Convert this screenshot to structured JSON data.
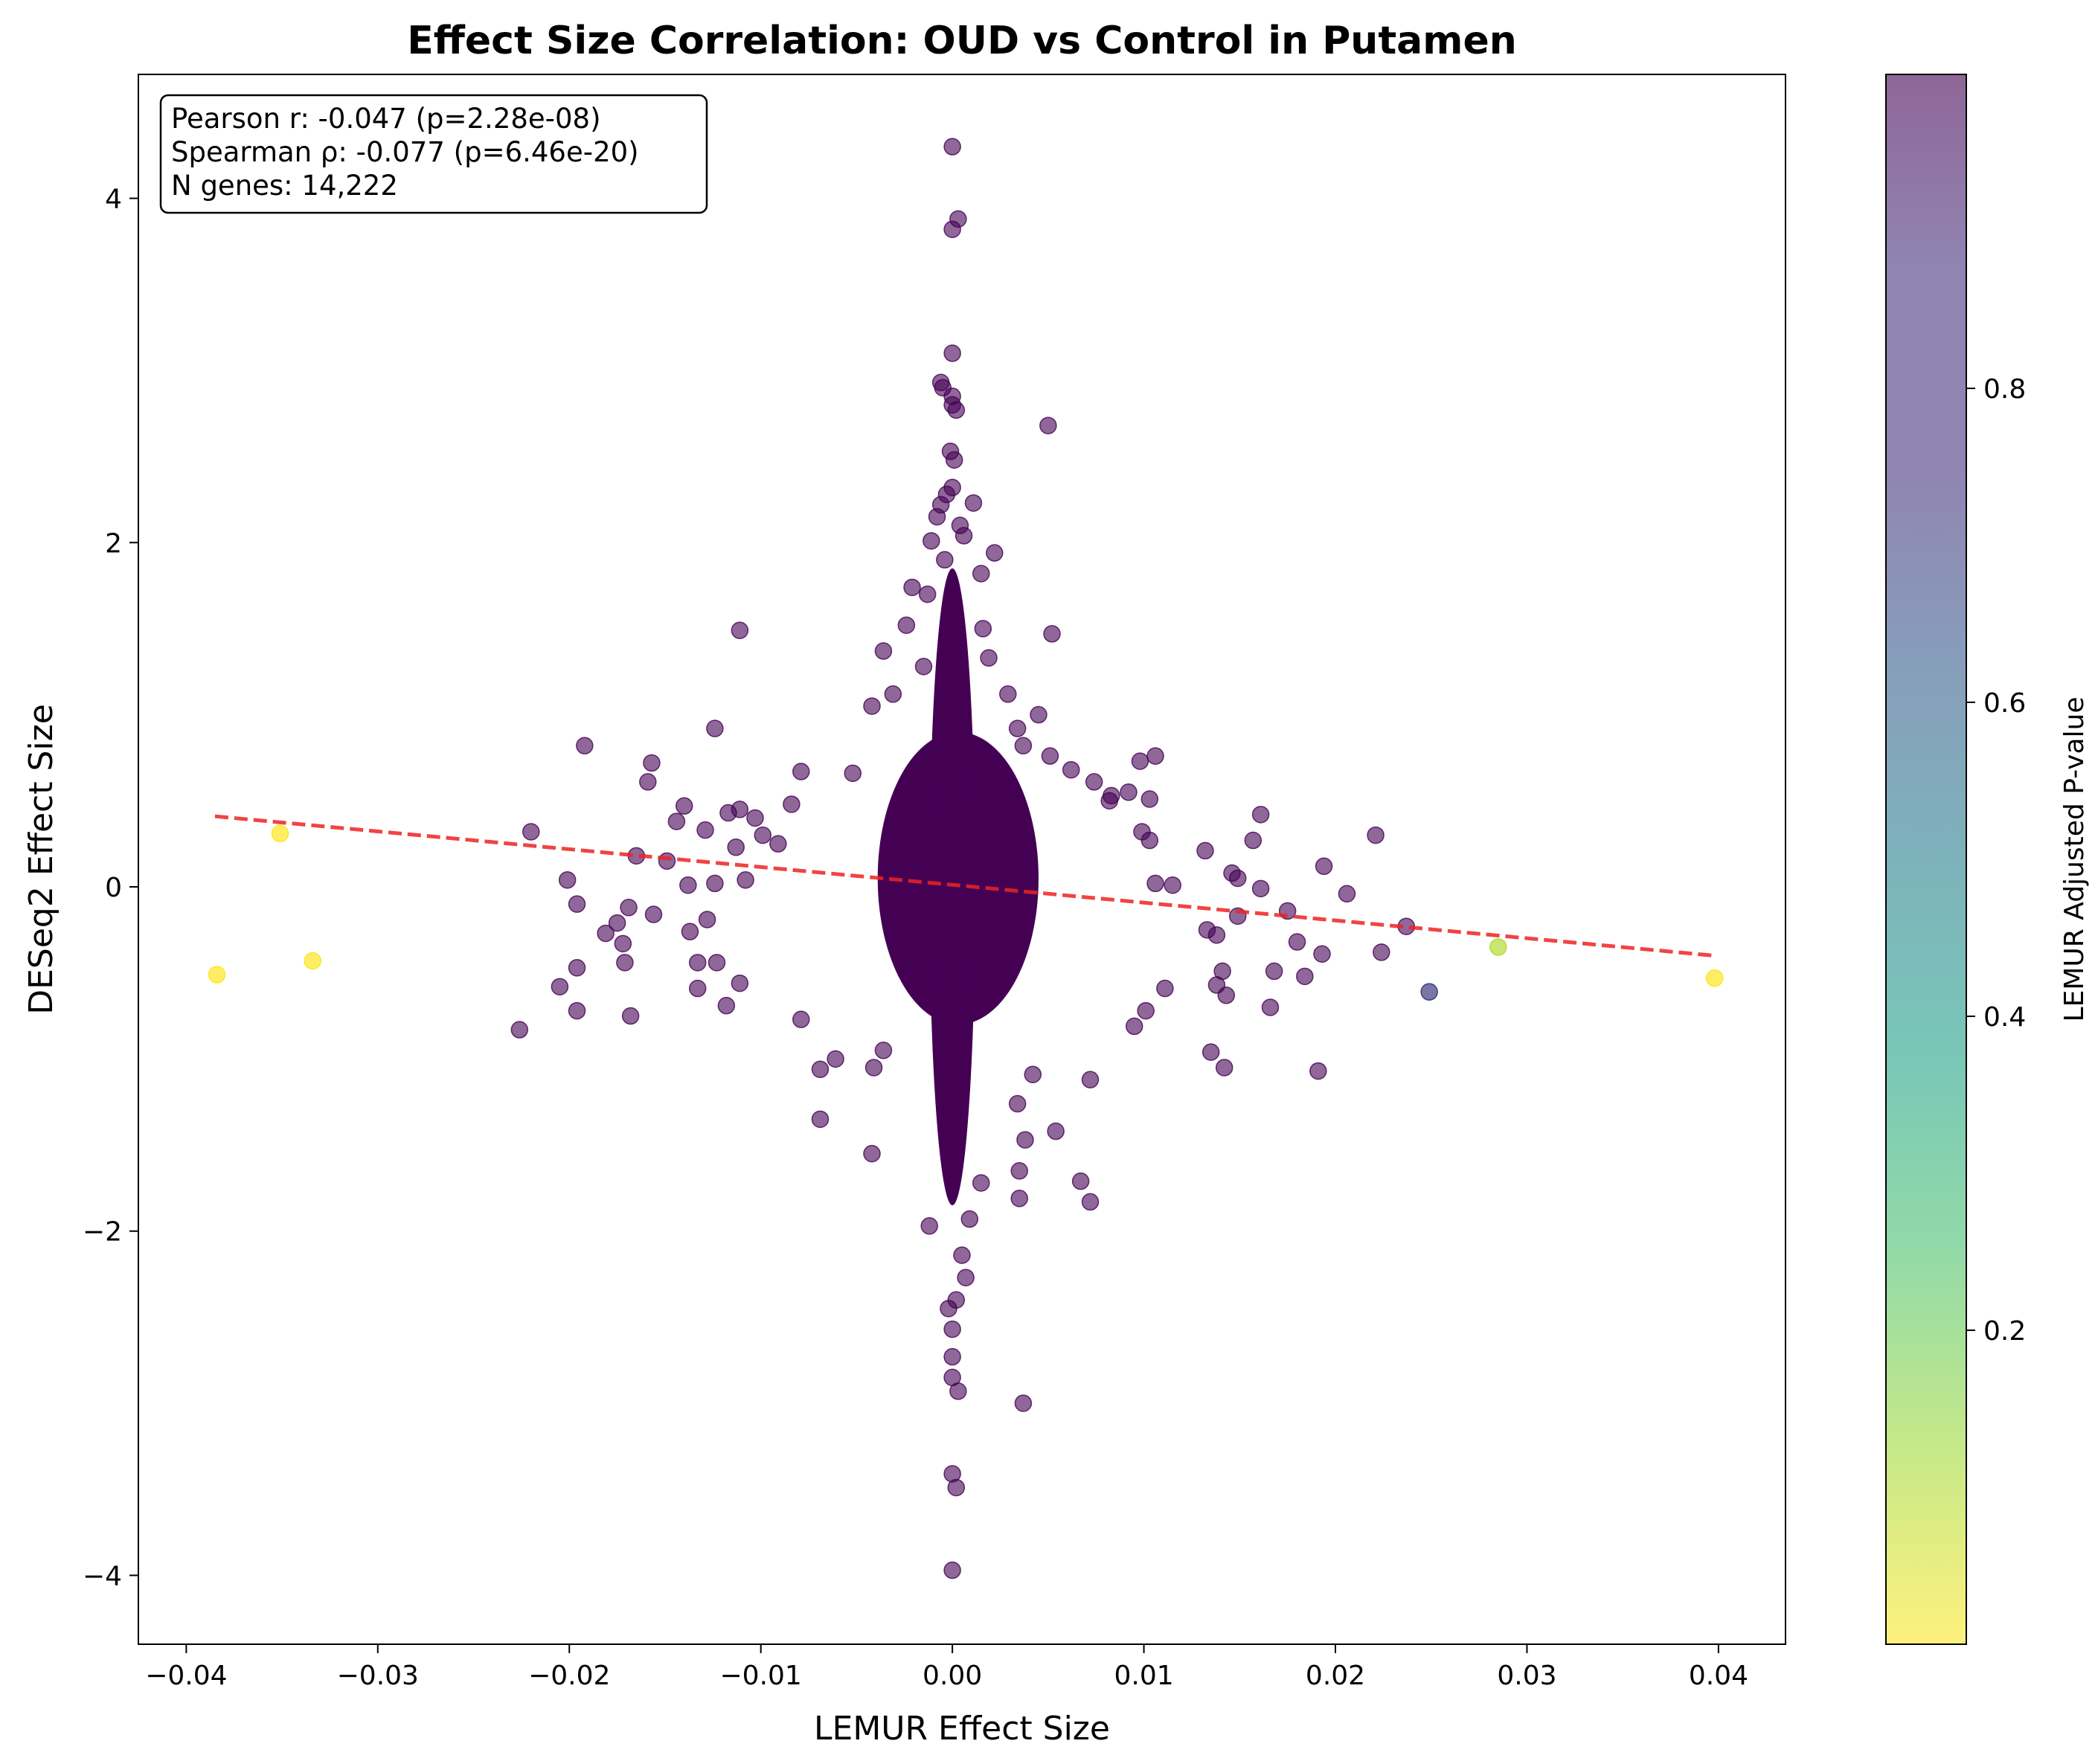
{
  "chart_data": {
    "type": "scatter",
    "title": "Effect Size Correlation: OUD vs Control in Putamen",
    "xlabel": "LEMUR Effect Size",
    "ylabel": "DESeq2 Effect Size",
    "xlim": [
      -0.0425,
      0.0435
    ],
    "ylim": [
      -4.4,
      4.72
    ],
    "x_ticks": [
      -0.04,
      -0.03,
      -0.02,
      -0.01,
      0.0,
      0.01,
      0.02,
      0.03,
      0.04
    ],
    "x_tick_labels": [
      "−0.04",
      "−0.03",
      "−0.02",
      "−0.01",
      "0.00",
      "0.01",
      "0.02",
      "0.03",
      "0.04"
    ],
    "y_ticks": [
      -4,
      -2,
      0,
      2,
      4
    ],
    "y_tick_labels": [
      "−4",
      "−2",
      "0",
      "2",
      "4"
    ],
    "grid": false,
    "stats": [
      "Pearson r: -0.047 (p=2.28e-08)",
      "Spearman ρ: -0.077 (p=6.46e-20)",
      "N genes: 14,222"
    ],
    "trend_line": {
      "x": [
        -0.0385,
        0.0398
      ],
      "y": [
        0.41,
        -0.4
      ],
      "color": "#ee2222",
      "style": "dashed"
    },
    "colorbar": {
      "label": "LEMUR Adjusted P-value",
      "colormap": "viridis_r",
      "range": [
        0.0,
        1.0
      ],
      "ticks": [
        0.2,
        0.4,
        0.6,
        0.8
      ],
      "tick_labels": [
        "0.2",
        "0.4",
        "0.6",
        "0.8"
      ]
    },
    "point_color_default": "#440154",
    "point_alpha": 0.6,
    "highlighted_points": [
      {
        "x": -0.0384,
        "y": -0.51,
        "p": 0.0
      },
      {
        "x": -0.0351,
        "y": 0.31,
        "p": 0.0
      },
      {
        "x": -0.0334,
        "y": -0.43,
        "p": 0.0
      },
      {
        "x": 0.0249,
        "y": -0.61,
        "p": 0.72
      },
      {
        "x": 0.0285,
        "y": -0.35,
        "p": 0.1
      },
      {
        "x": 0.0398,
        "y": -0.53,
        "p": 0.0
      }
    ],
    "points": [
      [
        0.0,
        4.3
      ],
      [
        0.0003,
        3.88
      ],
      [
        0.0,
        3.82
      ],
      [
        0.0,
        3.1
      ],
      [
        -0.0006,
        2.93
      ],
      [
        -0.0005,
        2.9
      ],
      [
        0.0,
        2.85
      ],
      [
        0.0,
        2.8
      ],
      [
        0.0002,
        2.77
      ],
      [
        0.005,
        2.68
      ],
      [
        -0.0001,
        2.53
      ],
      [
        0.0001,
        2.48
      ],
      [
        0.0,
        2.32
      ],
      [
        -0.0003,
        2.28
      ],
      [
        -0.0006,
        2.22
      ],
      [
        0.0011,
        2.23
      ],
      [
        -0.0008,
        2.15
      ],
      [
        0.0004,
        2.1
      ],
      [
        0.0006,
        2.04
      ],
      [
        -0.0011,
        2.01
      ],
      [
        0.0022,
        1.94
      ],
      [
        -0.0004,
        1.9
      ],
      [
        0.0015,
        1.82
      ],
      [
        -0.0021,
        1.74
      ],
      [
        -0.0013,
        1.7
      ],
      [
        -0.0111,
        1.49
      ],
      [
        0.0016,
        1.5
      ],
      [
        0.0052,
        1.47
      ],
      [
        -0.0024,
        1.52
      ],
      [
        0.0019,
        1.33
      ],
      [
        -0.0036,
        1.37
      ],
      [
        -0.0015,
        1.28
      ],
      [
        0.0029,
        1.12
      ],
      [
        -0.0031,
        1.12
      ],
      [
        0.0045,
        1.0
      ],
      [
        -0.0042,
        1.05
      ],
      [
        -0.0124,
        0.92
      ],
      [
        0.0034,
        0.92
      ],
      [
        -0.0192,
        0.82
      ],
      [
        0.0037,
        0.82
      ],
      [
        0.0051,
        0.76
      ],
      [
        0.0106,
        0.76
      ],
      [
        -0.0157,
        0.72
      ],
      [
        0.0098,
        0.73
      ],
      [
        -0.0159,
        0.61
      ],
      [
        0.0062,
        0.68
      ],
      [
        -0.0079,
        0.67
      ],
      [
        0.0074,
        0.61
      ],
      [
        -0.0052,
        0.66
      ],
      [
        -0.014,
        0.47
      ],
      [
        -0.0111,
        0.45
      ],
      [
        -0.0117,
        0.43
      ],
      [
        -0.0103,
        0.4
      ],
      [
        0.0083,
        0.53
      ],
      [
        0.0092,
        0.55
      ],
      [
        0.0082,
        0.5
      ],
      [
        0.0103,
        0.51
      ],
      [
        -0.0084,
        0.48
      ],
      [
        -0.0144,
        0.38
      ],
      [
        -0.022,
        0.32
      ],
      [
        -0.0129,
        0.33
      ],
      [
        -0.0099,
        0.3
      ],
      [
        0.0099,
        0.32
      ],
      [
        0.0103,
        0.27
      ],
      [
        0.0161,
        0.42
      ],
      [
        0.0221,
        0.3
      ],
      [
        -0.0165,
        0.18
      ],
      [
        -0.0149,
        0.15
      ],
      [
        -0.0113,
        0.23
      ],
      [
        -0.0091,
        0.25
      ],
      [
        0.0132,
        0.21
      ],
      [
        0.0157,
        0.27
      ],
      [
        0.0194,
        0.12
      ],
      [
        -0.0201,
        0.04
      ],
      [
        -0.0138,
        0.01
      ],
      [
        -0.0124,
        0.02
      ],
      [
        -0.0108,
        0.04
      ],
      [
        0.0146,
        0.08
      ],
      [
        0.0149,
        0.05
      ],
      [
        0.0115,
        0.01
      ],
      [
        0.0106,
        0.02
      ],
      [
        0.0161,
        -0.01
      ],
      [
        0.0206,
        -0.04
      ],
      [
        -0.0196,
        -0.1
      ],
      [
        -0.0169,
        -0.12
      ],
      [
        -0.0156,
        -0.16
      ],
      [
        -0.0181,
        -0.27
      ],
      [
        -0.0175,
        -0.21
      ],
      [
        -0.0128,
        -0.19
      ],
      [
        0.0133,
        -0.25
      ],
      [
        0.0138,
        -0.28
      ],
      [
        0.0149,
        -0.17
      ],
      [
        0.0175,
        -0.14
      ],
      [
        0.0237,
        -0.23
      ],
      [
        0.018,
        -0.32
      ],
      [
        -0.0172,
        -0.33
      ],
      [
        -0.0137,
        -0.26
      ],
      [
        -0.0133,
        -0.44
      ],
      [
        -0.0123,
        -0.44
      ],
      [
        -0.0171,
        -0.44
      ],
      [
        -0.0196,
        -0.47
      ],
      [
        0.0168,
        -0.49
      ],
      [
        0.0141,
        -0.49
      ],
      [
        0.0193,
        -0.39
      ],
      [
        0.0224,
        -0.38
      ],
      [
        -0.0205,
        -0.58
      ],
      [
        -0.0133,
        -0.59
      ],
      [
        -0.0111,
        -0.56
      ],
      [
        0.0138,
        -0.57
      ],
      [
        0.0184,
        -0.52
      ],
      [
        0.0111,
        -0.59
      ],
      [
        -0.0196,
        -0.72
      ],
      [
        -0.0168,
        -0.75
      ],
      [
        -0.0118,
        -0.69
      ],
      [
        -0.0079,
        -0.77
      ],
      [
        -0.0226,
        -0.83
      ],
      [
        0.0143,
        -0.63
      ],
      [
        0.0166,
        -0.7
      ],
      [
        0.0101,
        -0.72
      ],
      [
        0.0095,
        -0.81
      ],
      [
        0.0135,
        -0.96
      ],
      [
        0.0142,
        -1.05
      ],
      [
        0.0191,
        -1.07
      ],
      [
        -0.0069,
        -1.06
      ],
      [
        -0.0061,
        -1.0
      ],
      [
        -0.0041,
        -1.05
      ],
      [
        -0.0036,
        -0.95
      ],
      [
        0.0042,
        -1.09
      ],
      [
        0.0072,
        -1.12
      ],
      [
        -0.0069,
        -1.35
      ],
      [
        0.0034,
        -1.26
      ],
      [
        0.0054,
        -1.42
      ],
      [
        0.0038,
        -1.47
      ],
      [
        -0.0042,
        -1.55
      ],
      [
        0.0035,
        -1.65
      ],
      [
        0.0067,
        -1.71
      ],
      [
        0.0072,
        -1.83
      ],
      [
        -0.0012,
        -1.97
      ],
      [
        0.0009,
        -1.93
      ],
      [
        0.0035,
        -1.81
      ],
      [
        0.0015,
        -1.72
      ],
      [
        0.0005,
        -2.14
      ],
      [
        0.0007,
        -2.27
      ],
      [
        0.0002,
        -2.4
      ],
      [
        -0.0002,
        -2.45
      ],
      [
        0.0,
        -2.57
      ],
      [
        0.0,
        -2.73
      ],
      [
        0.0,
        -2.85
      ],
      [
        0.0003,
        -2.93
      ],
      [
        0.0037,
        -3.0
      ],
      [
        0.0,
        -3.41
      ],
      [
        0.0002,
        -3.49
      ],
      [
        0.0,
        -3.97
      ]
    ]
  }
}
